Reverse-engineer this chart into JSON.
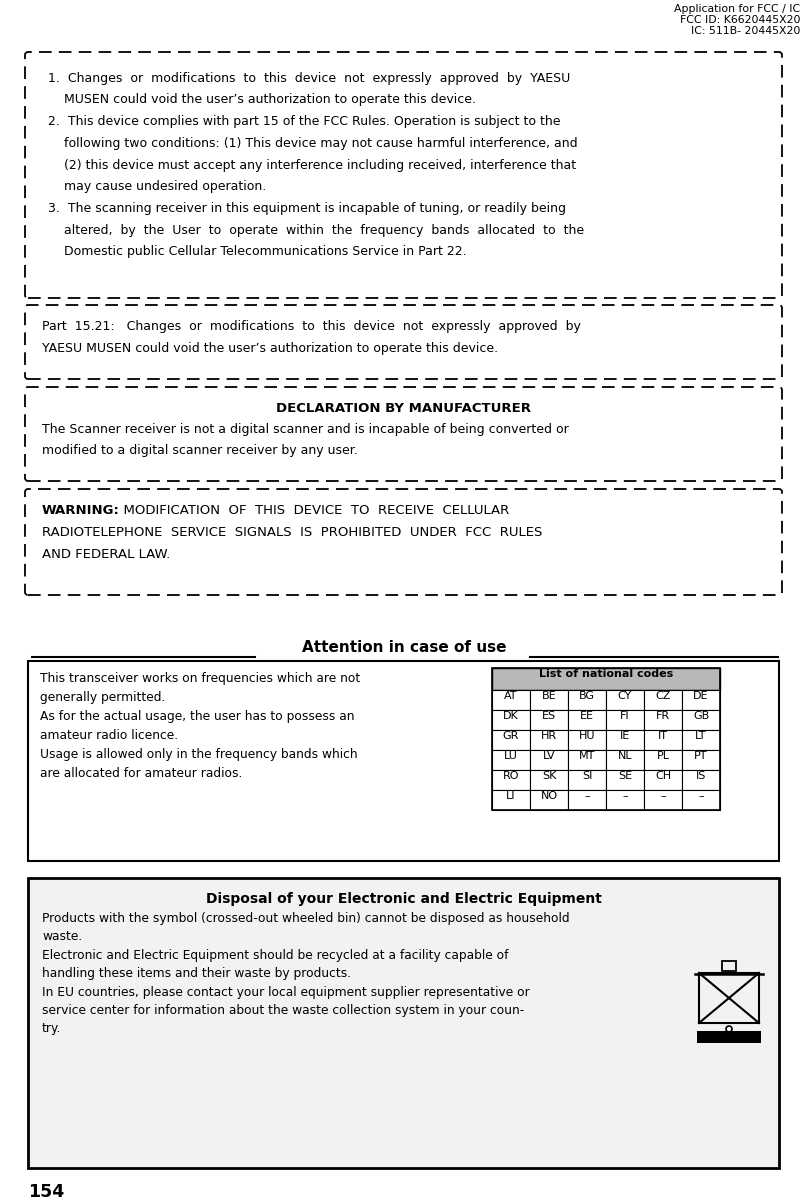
{
  "page_number": "154",
  "header_line1": "Application for FCC / IC",
  "header_line2": "FCC ID: K6620445X20",
  "header_line3": "IC: 511B- 20445X20",
  "box1_lines": [
    "1.  Changes  or  modifications  to  this  device  not  expressly  approved  by  YAESU",
    "    MUSEN could void the user’s authorization to operate this device.",
    "2.  This device complies with part 15 of the FCC Rules. Operation is subject to the",
    "    following two conditions: (1) This device may not cause harmful interference, and",
    "    (2) this device must accept any interference including received, interference that",
    "    may cause undesired operation.",
    "3.  The scanning receiver in this equipment is incapable of tuning, or readily being",
    "    altered,  by  the  User  to  operate  within  the  frequency  bands  allocated  to  the",
    "    Domestic public Cellular Telecommunications Service in Part 22."
  ],
  "box2_lines": [
    "Part  15.21:   Changes  or  modifications  to  this  device  not  expressly  approved  by",
    "YAESU MUSEN could void the user’s authorization to operate this device."
  ],
  "box3_title": "DECLARATION BY MANUFACTURER",
  "box3_lines": [
    "The Scanner receiver is not a digital scanner and is incapable of being converted or",
    "modified to a digital scanner receiver by any user."
  ],
  "box4_warning_bold": "WARNING:",
  "box4_lines": [
    "  MODIFICATION  OF  THIS  DEVICE  TO  RECEIVE  CELLULAR",
    "RADIOTELEPHONE  SERVICE  SIGNALS  IS  PROHIBITED  UNDER  FCC  RULES",
    "AND FEDERAL LAW."
  ],
  "attention_title": "Attention in case of use",
  "attention_lines": [
    "This transceiver works on frequencies which are not",
    "generally permitted.",
    "As for the actual usage, the user has to possess an",
    "amateur radio licence.",
    "Usage is allowed only in the frequency bands which",
    "are allocated for amateur radios."
  ],
  "table_title": "List of national codes",
  "table_data": [
    [
      "AT",
      "BE",
      "BG",
      "CY",
      "CZ",
      "DE"
    ],
    [
      "DK",
      "ES",
      "EE",
      "FI",
      "FR",
      "GB"
    ],
    [
      "GR",
      "HR",
      "HU",
      "IE",
      "IT",
      "LT"
    ],
    [
      "LU",
      "LV",
      "MT",
      "NL",
      "PL",
      "PT"
    ],
    [
      "RO",
      "SK",
      "SI",
      "SE",
      "CH",
      "IS"
    ],
    [
      "LI",
      "NO",
      "–",
      "–",
      "–",
      "–"
    ]
  ],
  "disposal_title": "Disposal of your Electronic and Electric Equipment",
  "disposal_lines": [
    "Products with the symbol (crossed-out wheeled bin) cannot be disposed as household",
    "waste.",
    "Electronic and Electric Equipment should be recycled at a facility capable of",
    "handling these items and their waste by products.",
    "In EU countries, please contact your local equipment supplier representative or",
    "service center for information about the waste collection system in your coun-",
    "try."
  ],
  "bg_color": "#ffffff"
}
